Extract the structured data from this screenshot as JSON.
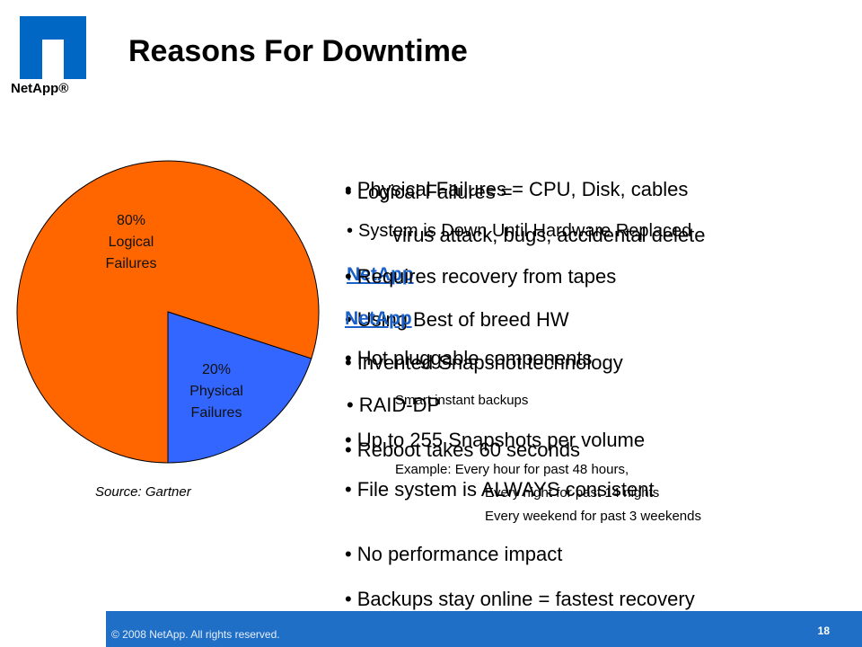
{
  "logo": {
    "text": "NetApp®"
  },
  "title": "Reasons For Downtime",
  "chart_data": {
    "type": "pie",
    "slices": [
      {
        "label": "80%\nLogical\nFailures",
        "percent": 80,
        "color": "#ff6600"
      },
      {
        "label": "20%\nPhysical\nFailures",
        "percent": 20,
        "color": "#3366ff"
      }
    ]
  },
  "source": "Source: Gartner",
  "layer_a": {
    "items": [
      "Physical Failures = CPU, Disk, cables",
      "System is Down Until Hardware Replaced",
      "NetApp",
      "Using Best of breed HW",
      "Hot pluggable components",
      "RAID-DP",
      "Reboot takes 60 seconds",
      "File system is ALWAYS consistent"
    ]
  },
  "layer_b": {
    "logical_failures": "Logical Failures =",
    "logical_detail": "virus attack, bugs, accidental delete",
    "requires": "Requires recovery from tapes",
    "netapp": "NetApp",
    "invented": "Invented Snapshot technology",
    "smart": "Smart instant backups",
    "up_to": "Up to 255 Snapshots per volume",
    "example_1": "Example: Every hour for past 48 hours,",
    "example_2": "Every night for past 14 nights",
    "example_3": "Every weekend for past 3 weekends",
    "no_perf": "No performance impact",
    "backups": "Backups stay online = fastest recovery"
  },
  "footer": {
    "copyright": "© 2008 NetApp.  All rights reserved.",
    "page": "18"
  }
}
